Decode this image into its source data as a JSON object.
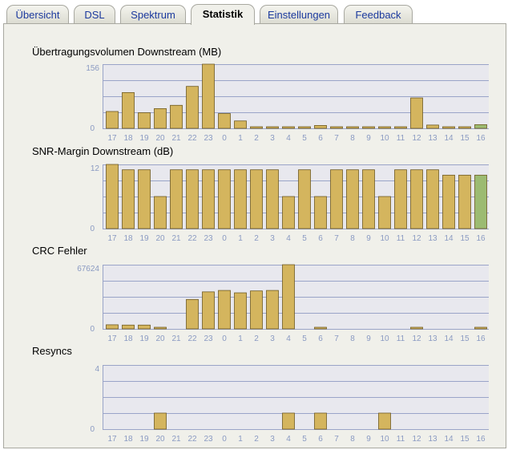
{
  "tabs": [
    {
      "label": "Übersicht"
    },
    {
      "label": "DSL"
    },
    {
      "label": "Spektrum"
    },
    {
      "label": "Statistik",
      "active": true
    },
    {
      "label": "Einstellungen"
    },
    {
      "label": "Feedback"
    }
  ],
  "colors": {
    "bar": "#d4b55e",
    "bar_highlight": "#9cbb72",
    "grid": "#9aa4c8",
    "tick_label": "#8a9ac2",
    "plot_bg": "#e8e8ee"
  },
  "chart_data": [
    {
      "type": "bar",
      "title": "Übertragungsvolumen Downstream (MB)",
      "categories": [
        "17",
        "18",
        "19",
        "20",
        "21",
        "22",
        "23",
        "0",
        "1",
        "2",
        "3",
        "4",
        "5",
        "6",
        "7",
        "8",
        "9",
        "10",
        "11",
        "12",
        "13",
        "14",
        "15",
        "16"
      ],
      "values": [
        41,
        87,
        38,
        48,
        56,
        102,
        156,
        36,
        18,
        1,
        1,
        1,
        1,
        7,
        1,
        1,
        1,
        1,
        1,
        74,
        8,
        1,
        1,
        9
      ],
      "ylim": [
        0,
        156
      ],
      "yticks_labeled": [
        "156",
        "0"
      ],
      "highlight_last": true
    },
    {
      "type": "bar",
      "title": "SNR-Margin Downstream (dB)",
      "categories": [
        "17",
        "18",
        "19",
        "20",
        "21",
        "22",
        "23",
        "0",
        "1",
        "2",
        "3",
        "4",
        "5",
        "6",
        "7",
        "8",
        "9",
        "10",
        "11",
        "12",
        "13",
        "14",
        "15",
        "16"
      ],
      "values": [
        12,
        11,
        11,
        6,
        11,
        11,
        11,
        11,
        11,
        11,
        11,
        6,
        11,
        6,
        11,
        11,
        11,
        6,
        11,
        11,
        11,
        10,
        10,
        10
      ],
      "ylim": [
        0,
        12
      ],
      "yticks_labeled": [
        "12",
        "0"
      ],
      "highlight_last": true
    },
    {
      "type": "bar",
      "title": "CRC Fehler",
      "categories": [
        "17",
        "18",
        "19",
        "20",
        "21",
        "22",
        "23",
        "0",
        "1",
        "2",
        "3",
        "4",
        "5",
        "6",
        "7",
        "8",
        "9",
        "10",
        "11",
        "12",
        "13",
        "14",
        "15",
        "16"
      ],
      "values": [
        4300,
        4000,
        4000,
        1500,
        0,
        31000,
        39000,
        40500,
        38000,
        40000,
        40500,
        67624,
        0,
        600,
        0,
        0,
        0,
        0,
        0,
        500,
        0,
        0,
        0,
        700
      ],
      "ylim": [
        0,
        67624
      ],
      "yticks_labeled": [
        "67624",
        "0"
      ],
      "highlight_last": false
    },
    {
      "type": "bar",
      "title": "Resyncs",
      "categories": [
        "17",
        "18",
        "19",
        "20",
        "21",
        "22",
        "23",
        "0",
        "1",
        "2",
        "3",
        "4",
        "5",
        "6",
        "7",
        "8",
        "9",
        "10",
        "11",
        "12",
        "13",
        "14",
        "15",
        "16"
      ],
      "values": [
        0,
        0,
        0,
        1,
        0,
        0,
        0,
        0,
        0,
        0,
        0,
        1,
        0,
        1,
        0,
        0,
        0,
        1,
        0,
        0,
        0,
        0,
        0,
        0
      ],
      "ylim": [
        0,
        4
      ],
      "yticks_labeled": [
        "4",
        "0"
      ],
      "highlight_last": false
    }
  ]
}
